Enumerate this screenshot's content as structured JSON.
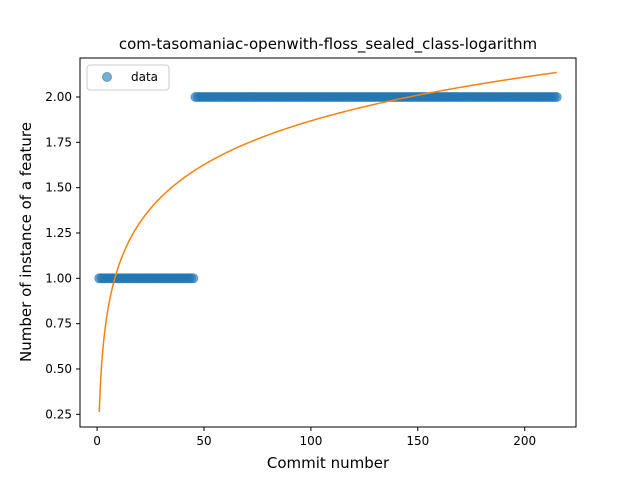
{
  "chart_data": {
    "type": "scatter",
    "title": "com-tasomaniac-openwith-floss_sealed_class-logarithm",
    "xlabel": "Commit number",
    "ylabel": "Number of instance of a feature",
    "xlim": [
      -8,
      224
    ],
    "ylim": [
      0.18,
      2.215
    ],
    "x_ticks": [
      0,
      50,
      100,
      150,
      200
    ],
    "y_ticks": [
      0.25,
      0.5,
      0.75,
      1.0,
      1.25,
      1.5,
      1.75,
      2.0
    ],
    "x_tick_labels": [
      "0",
      "50",
      "100",
      "150",
      "200"
    ],
    "y_tick_labels": [
      "0.25",
      "0.50",
      "0.75",
      "1.00",
      "1.25",
      "1.50",
      "1.75",
      "2.00"
    ],
    "legend": {
      "position": "upper-left",
      "entries": [
        "data"
      ]
    },
    "series": [
      {
        "name": "data",
        "kind": "points",
        "color": "#1f77b4",
        "segments": [
          {
            "x_start": 1,
            "x_end": 45,
            "y": 1
          },
          {
            "x_start": 46,
            "x_end": 215,
            "y": 2
          }
        ]
      },
      {
        "kind": "fit-line",
        "color": "#ff7f0e",
        "formula": "y = a + b*ln(x)",
        "a": 0.263,
        "b": 0.3486,
        "x_range": [
          1,
          215
        ]
      }
    ]
  }
}
